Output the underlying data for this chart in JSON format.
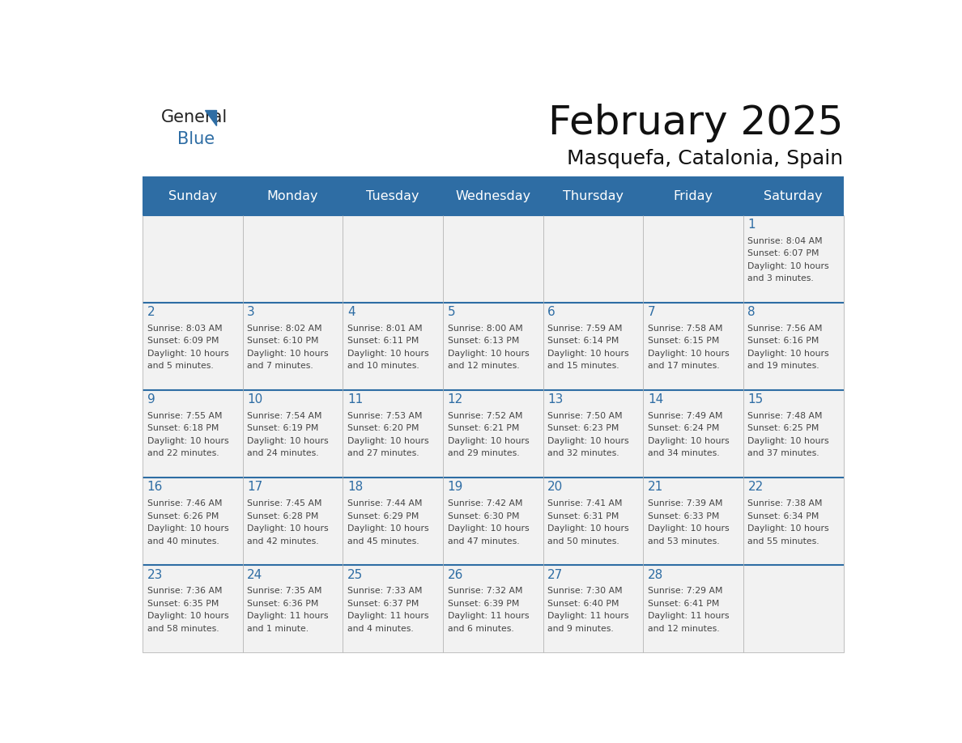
{
  "title": "February 2025",
  "subtitle": "Masquefa, Catalonia, Spain",
  "days_of_week": [
    "Sunday",
    "Monday",
    "Tuesday",
    "Wednesday",
    "Thursday",
    "Friday",
    "Saturday"
  ],
  "header_bg": "#2E6DA4",
  "header_text": "#FFFFFF",
  "cell_bg": "#F2F2F2",
  "day_number_color": "#2E6DA4",
  "text_color": "#444444",
  "border_color": "#BBBBBB",
  "line_color": "#2E6DA4",
  "calendar_data": [
    [
      {
        "day": null,
        "text": ""
      },
      {
        "day": null,
        "text": ""
      },
      {
        "day": null,
        "text": ""
      },
      {
        "day": null,
        "text": ""
      },
      {
        "day": null,
        "text": ""
      },
      {
        "day": null,
        "text": ""
      },
      {
        "day": 1,
        "text": "Sunrise: 8:04 AM\nSunset: 6:07 PM\nDaylight: 10 hours\nand 3 minutes."
      }
    ],
    [
      {
        "day": 2,
        "text": "Sunrise: 8:03 AM\nSunset: 6:09 PM\nDaylight: 10 hours\nand 5 minutes."
      },
      {
        "day": 3,
        "text": "Sunrise: 8:02 AM\nSunset: 6:10 PM\nDaylight: 10 hours\nand 7 minutes."
      },
      {
        "day": 4,
        "text": "Sunrise: 8:01 AM\nSunset: 6:11 PM\nDaylight: 10 hours\nand 10 minutes."
      },
      {
        "day": 5,
        "text": "Sunrise: 8:00 AM\nSunset: 6:13 PM\nDaylight: 10 hours\nand 12 minutes."
      },
      {
        "day": 6,
        "text": "Sunrise: 7:59 AM\nSunset: 6:14 PM\nDaylight: 10 hours\nand 15 minutes."
      },
      {
        "day": 7,
        "text": "Sunrise: 7:58 AM\nSunset: 6:15 PM\nDaylight: 10 hours\nand 17 minutes."
      },
      {
        "day": 8,
        "text": "Sunrise: 7:56 AM\nSunset: 6:16 PM\nDaylight: 10 hours\nand 19 minutes."
      }
    ],
    [
      {
        "day": 9,
        "text": "Sunrise: 7:55 AM\nSunset: 6:18 PM\nDaylight: 10 hours\nand 22 minutes."
      },
      {
        "day": 10,
        "text": "Sunrise: 7:54 AM\nSunset: 6:19 PM\nDaylight: 10 hours\nand 24 minutes."
      },
      {
        "day": 11,
        "text": "Sunrise: 7:53 AM\nSunset: 6:20 PM\nDaylight: 10 hours\nand 27 minutes."
      },
      {
        "day": 12,
        "text": "Sunrise: 7:52 AM\nSunset: 6:21 PM\nDaylight: 10 hours\nand 29 minutes."
      },
      {
        "day": 13,
        "text": "Sunrise: 7:50 AM\nSunset: 6:23 PM\nDaylight: 10 hours\nand 32 minutes."
      },
      {
        "day": 14,
        "text": "Sunrise: 7:49 AM\nSunset: 6:24 PM\nDaylight: 10 hours\nand 34 minutes."
      },
      {
        "day": 15,
        "text": "Sunrise: 7:48 AM\nSunset: 6:25 PM\nDaylight: 10 hours\nand 37 minutes."
      }
    ],
    [
      {
        "day": 16,
        "text": "Sunrise: 7:46 AM\nSunset: 6:26 PM\nDaylight: 10 hours\nand 40 minutes."
      },
      {
        "day": 17,
        "text": "Sunrise: 7:45 AM\nSunset: 6:28 PM\nDaylight: 10 hours\nand 42 minutes."
      },
      {
        "day": 18,
        "text": "Sunrise: 7:44 AM\nSunset: 6:29 PM\nDaylight: 10 hours\nand 45 minutes."
      },
      {
        "day": 19,
        "text": "Sunrise: 7:42 AM\nSunset: 6:30 PM\nDaylight: 10 hours\nand 47 minutes."
      },
      {
        "day": 20,
        "text": "Sunrise: 7:41 AM\nSunset: 6:31 PM\nDaylight: 10 hours\nand 50 minutes."
      },
      {
        "day": 21,
        "text": "Sunrise: 7:39 AM\nSunset: 6:33 PM\nDaylight: 10 hours\nand 53 minutes."
      },
      {
        "day": 22,
        "text": "Sunrise: 7:38 AM\nSunset: 6:34 PM\nDaylight: 10 hours\nand 55 minutes."
      }
    ],
    [
      {
        "day": 23,
        "text": "Sunrise: 7:36 AM\nSunset: 6:35 PM\nDaylight: 10 hours\nand 58 minutes."
      },
      {
        "day": 24,
        "text": "Sunrise: 7:35 AM\nSunset: 6:36 PM\nDaylight: 11 hours\nand 1 minute."
      },
      {
        "day": 25,
        "text": "Sunrise: 7:33 AM\nSunset: 6:37 PM\nDaylight: 11 hours\nand 4 minutes."
      },
      {
        "day": 26,
        "text": "Sunrise: 7:32 AM\nSunset: 6:39 PM\nDaylight: 11 hours\nand 6 minutes."
      },
      {
        "day": 27,
        "text": "Sunrise: 7:30 AM\nSunset: 6:40 PM\nDaylight: 11 hours\nand 9 minutes."
      },
      {
        "day": 28,
        "text": "Sunrise: 7:29 AM\nSunset: 6:41 PM\nDaylight: 11 hours\nand 12 minutes."
      },
      {
        "day": null,
        "text": ""
      }
    ]
  ]
}
